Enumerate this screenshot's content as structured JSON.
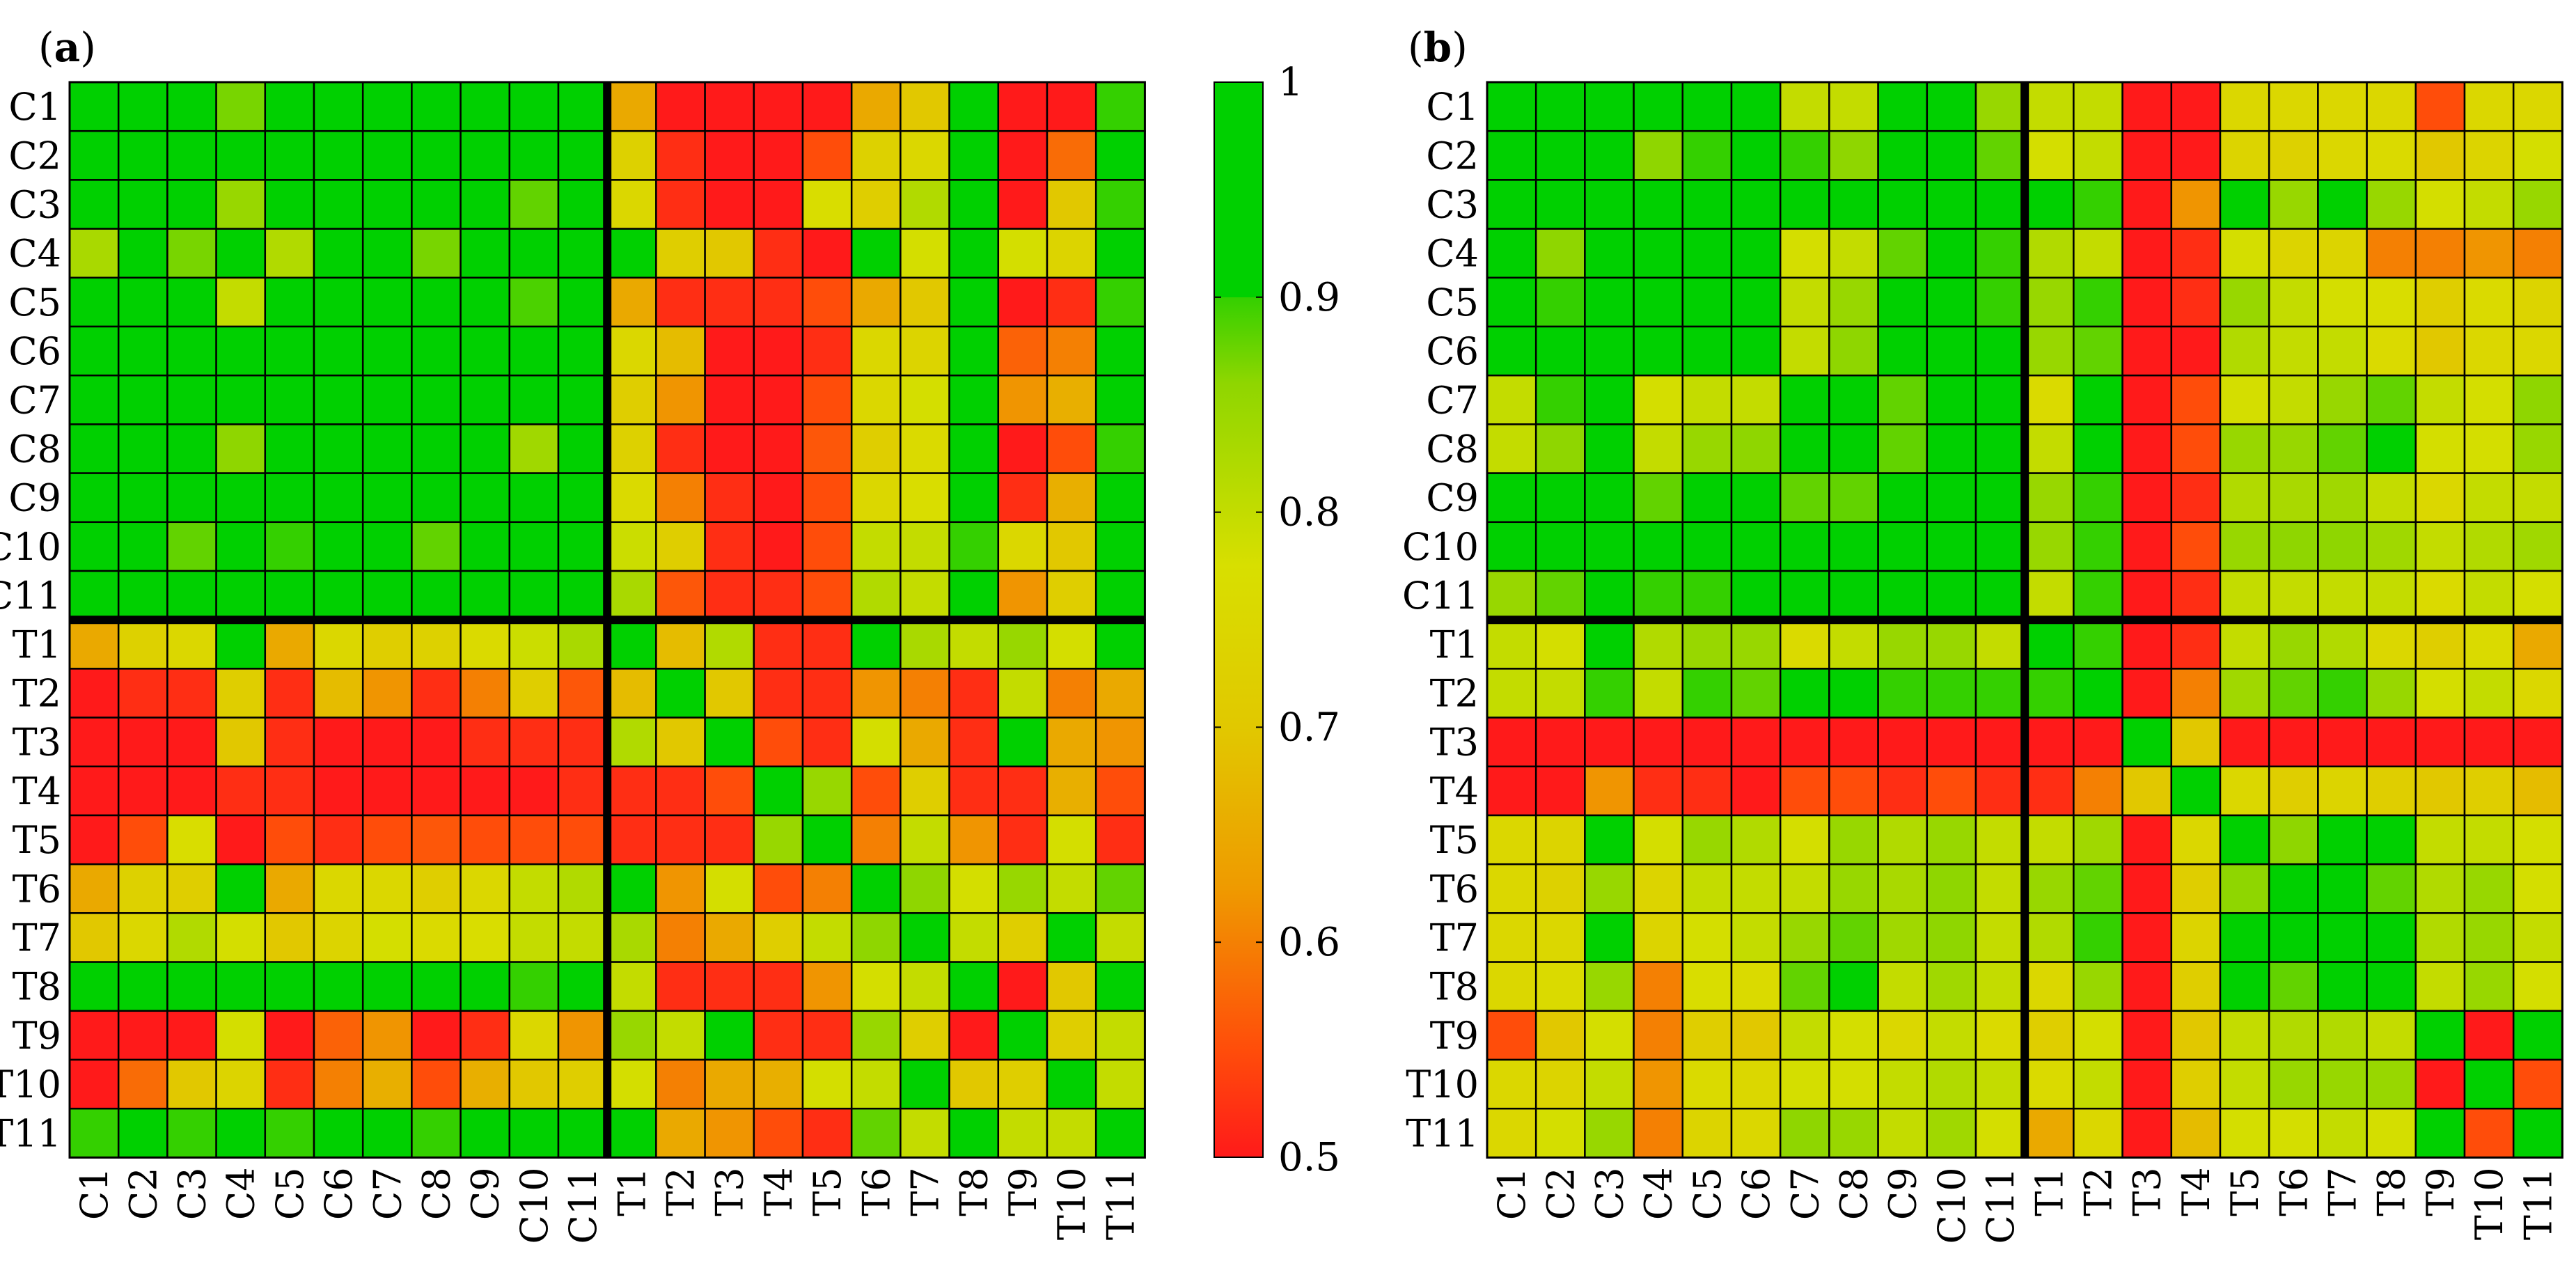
{
  "panels": [
    {
      "label_open": "(",
      "label_letter": "a",
      "label_close": ")"
    },
    {
      "label_open": "(",
      "label_letter": "b",
      "label_close": ")"
    }
  ],
  "colorbar": {
    "ticks": [
      "1",
      "0.9",
      "0.8",
      "0.7",
      "0.6",
      "0.5"
    ]
  },
  "colors": {
    "low": "#ff1a1a",
    "mid": "#dede00",
    "high": "#00d000",
    "grid": "#000000",
    "divider": "#000000"
  },
  "chart_data": [
    {
      "type": "heatmap",
      "title": "",
      "panel": "a",
      "labels": [
        "C1",
        "C2",
        "C3",
        "C4",
        "C5",
        "C6",
        "C7",
        "C8",
        "C9",
        "C10",
        "C11",
        "T1",
        "T2",
        "T3",
        "T4",
        "T5",
        "T6",
        "T7",
        "T8",
        "T9",
        "T10",
        "T11"
      ],
      "vmin": 0.5,
      "vmax": 1,
      "values": [
        [
          0.95,
          0.95,
          0.95,
          0.87,
          0.95,
          0.95,
          0.95,
          0.95,
          0.95,
          0.95,
          0.95,
          0.65,
          0.5,
          0.5,
          0.5,
          0.5,
          0.65,
          0.7,
          0.95,
          0.5,
          0.5,
          0.9
        ],
        [
          0.95,
          0.95,
          0.95,
          0.95,
          0.95,
          0.95,
          0.95,
          0.95,
          0.95,
          0.95,
          0.95,
          0.73,
          0.52,
          0.5,
          0.5,
          0.55,
          0.73,
          0.75,
          0.95,
          0.5,
          0.58,
          0.95
        ],
        [
          0.95,
          0.95,
          0.95,
          0.85,
          0.95,
          0.93,
          0.95,
          0.95,
          0.95,
          0.88,
          0.95,
          0.75,
          0.52,
          0.5,
          0.5,
          0.77,
          0.72,
          0.82,
          0.95,
          0.5,
          0.7,
          0.9
        ],
        [
          0.83,
          0.95,
          0.87,
          0.95,
          0.82,
          0.95,
          0.95,
          0.87,
          0.95,
          0.95,
          0.95,
          0.95,
          0.72,
          0.7,
          0.52,
          0.5,
          0.95,
          0.78,
          0.92,
          0.78,
          0.74,
          0.95
        ],
        [
          0.95,
          0.95,
          0.95,
          0.8,
          0.95,
          0.95,
          0.95,
          0.95,
          0.95,
          0.89,
          0.95,
          0.65,
          0.52,
          0.52,
          0.52,
          0.55,
          0.65,
          0.7,
          0.95,
          0.5,
          0.52,
          0.9
        ],
        [
          0.95,
          0.95,
          0.92,
          0.95,
          0.95,
          0.95,
          0.93,
          0.95,
          0.95,
          0.95,
          0.95,
          0.75,
          0.68,
          0.5,
          0.5,
          0.52,
          0.75,
          0.74,
          0.95,
          0.57,
          0.6,
          0.95
        ],
        [
          0.95,
          0.95,
          0.95,
          0.95,
          0.95,
          0.95,
          0.95,
          0.95,
          0.95,
          0.95,
          0.95,
          0.72,
          0.62,
          0.5,
          0.5,
          0.55,
          0.75,
          0.78,
          0.95,
          0.62,
          0.66,
          0.95
        ],
        [
          0.95,
          0.95,
          0.95,
          0.86,
          0.95,
          0.92,
          0.95,
          0.95,
          0.95,
          0.84,
          0.95,
          0.73,
          0.52,
          0.5,
          0.5,
          0.56,
          0.72,
          0.76,
          0.95,
          0.5,
          0.55,
          0.9
        ],
        [
          0.95,
          0.95,
          0.95,
          0.95,
          0.95,
          0.95,
          0.95,
          0.95,
          0.95,
          0.95,
          0.95,
          0.76,
          0.6,
          0.52,
          0.5,
          0.55,
          0.75,
          0.77,
          0.95,
          0.52,
          0.66,
          0.95
        ],
        [
          0.92,
          0.95,
          0.88,
          0.95,
          0.9,
          0.95,
          0.95,
          0.88,
          0.95,
          0.95,
          0.95,
          0.79,
          0.72,
          0.52,
          0.5,
          0.55,
          0.8,
          0.8,
          0.9,
          0.75,
          0.7,
          0.93
        ],
        [
          0.95,
          0.95,
          0.95,
          0.95,
          0.95,
          0.95,
          0.95,
          0.95,
          0.95,
          0.95,
          0.95,
          0.83,
          0.56,
          0.52,
          0.52,
          0.55,
          0.82,
          0.8,
          0.95,
          0.62,
          0.72,
          0.95
        ],
        [
          0.65,
          0.73,
          0.75,
          0.95,
          0.65,
          0.75,
          0.72,
          0.73,
          0.76,
          0.79,
          0.83,
          0.95,
          0.68,
          0.82,
          0.52,
          0.52,
          0.95,
          0.83,
          0.8,
          0.85,
          0.78,
          0.92
        ],
        [
          0.5,
          0.52,
          0.52,
          0.72,
          0.52,
          0.68,
          0.62,
          0.52,
          0.6,
          0.72,
          0.56,
          0.68,
          0.95,
          0.7,
          0.52,
          0.52,
          0.62,
          0.6,
          0.52,
          0.8,
          0.6,
          0.65
        ],
        [
          0.5,
          0.5,
          0.5,
          0.7,
          0.52,
          0.5,
          0.5,
          0.5,
          0.52,
          0.52,
          0.52,
          0.82,
          0.7,
          0.95,
          0.55,
          0.52,
          0.78,
          0.65,
          0.52,
          0.95,
          0.65,
          0.62
        ],
        [
          0.5,
          0.5,
          0.5,
          0.52,
          0.52,
          0.5,
          0.5,
          0.5,
          0.5,
          0.5,
          0.52,
          0.52,
          0.52,
          0.55,
          0.95,
          0.85,
          0.55,
          0.72,
          0.52,
          0.52,
          0.66,
          0.55
        ],
        [
          0.5,
          0.55,
          0.77,
          0.5,
          0.55,
          0.52,
          0.55,
          0.56,
          0.55,
          0.55,
          0.55,
          0.52,
          0.52,
          0.52,
          0.85,
          0.95,
          0.6,
          0.8,
          0.62,
          0.52,
          0.78,
          0.52
        ],
        [
          0.65,
          0.73,
          0.72,
          0.95,
          0.65,
          0.75,
          0.75,
          0.72,
          0.75,
          0.8,
          0.82,
          0.95,
          0.62,
          0.78,
          0.55,
          0.6,
          0.95,
          0.86,
          0.78,
          0.85,
          0.8,
          0.88
        ],
        [
          0.7,
          0.75,
          0.82,
          0.78,
          0.7,
          0.74,
          0.78,
          0.76,
          0.77,
          0.8,
          0.8,
          0.83,
          0.6,
          0.65,
          0.72,
          0.8,
          0.86,
          0.95,
          0.8,
          0.72,
          0.95,
          0.8
        ],
        [
          0.95,
          0.95,
          0.95,
          0.92,
          0.95,
          0.95,
          0.95,
          0.95,
          0.95,
          0.9,
          0.95,
          0.8,
          0.52,
          0.52,
          0.52,
          0.62,
          0.78,
          0.8,
          0.95,
          0.5,
          0.7,
          0.95
        ],
        [
          0.5,
          0.5,
          0.5,
          0.78,
          0.5,
          0.57,
          0.62,
          0.5,
          0.52,
          0.75,
          0.62,
          0.85,
          0.8,
          0.95,
          0.52,
          0.52,
          0.85,
          0.72,
          0.5,
          0.95,
          0.72,
          0.8
        ],
        [
          0.5,
          0.58,
          0.7,
          0.74,
          0.52,
          0.6,
          0.66,
          0.55,
          0.66,
          0.7,
          0.72,
          0.78,
          0.6,
          0.65,
          0.66,
          0.78,
          0.8,
          0.95,
          0.7,
          0.72,
          0.95,
          0.8
        ],
        [
          0.9,
          0.95,
          0.9,
          0.95,
          0.9,
          0.95,
          0.95,
          0.9,
          0.95,
          0.93,
          0.95,
          0.92,
          0.65,
          0.62,
          0.55,
          0.52,
          0.88,
          0.8,
          0.95,
          0.8,
          0.8,
          0.95
        ]
      ]
    },
    {
      "type": "heatmap",
      "title": "",
      "panel": "b",
      "labels": [
        "C1",
        "C2",
        "C3",
        "C4",
        "C5",
        "C6",
        "C7",
        "C8",
        "C9",
        "C10",
        "C11",
        "T1",
        "T2",
        "T3",
        "T4",
        "T5",
        "T6",
        "T7",
        "T8",
        "T9",
        "T10",
        "T11"
      ],
      "vmin": 0.5,
      "vmax": 1,
      "values": [
        [
          0.95,
          0.95,
          0.95,
          0.94,
          0.95,
          0.95,
          0.8,
          0.8,
          0.95,
          0.95,
          0.85,
          0.8,
          0.8,
          0.5,
          0.5,
          0.75,
          0.75,
          0.75,
          0.75,
          0.55,
          0.75,
          0.75
        ],
        [
          0.95,
          0.95,
          0.95,
          0.86,
          0.9,
          0.95,
          0.9,
          0.86,
          0.95,
          0.95,
          0.88,
          0.78,
          0.8,
          0.5,
          0.5,
          0.74,
          0.73,
          0.75,
          0.76,
          0.7,
          0.74,
          0.78
        ],
        [
          0.95,
          0.95,
          0.95,
          0.95,
          0.95,
          0.95,
          0.93,
          0.92,
          0.95,
          0.93,
          0.92,
          0.95,
          0.9,
          0.5,
          0.62,
          0.95,
          0.85,
          0.93,
          0.85,
          0.78,
          0.8,
          0.85
        ],
        [
          0.92,
          0.86,
          0.95,
          0.95,
          0.94,
          0.95,
          0.78,
          0.8,
          0.88,
          0.92,
          0.9,
          0.82,
          0.8,
          0.5,
          0.52,
          0.78,
          0.74,
          0.74,
          0.6,
          0.6,
          0.62,
          0.6
        ],
        [
          0.95,
          0.9,
          0.95,
          0.94,
          0.95,
          0.95,
          0.8,
          0.85,
          0.95,
          0.95,
          0.9,
          0.85,
          0.9,
          0.5,
          0.52,
          0.85,
          0.8,
          0.78,
          0.77,
          0.72,
          0.76,
          0.74
        ],
        [
          0.95,
          0.95,
          0.95,
          0.95,
          0.95,
          0.95,
          0.8,
          0.86,
          0.95,
          0.95,
          0.93,
          0.85,
          0.88,
          0.5,
          0.5,
          0.82,
          0.8,
          0.8,
          0.76,
          0.7,
          0.75,
          0.75
        ],
        [
          0.8,
          0.9,
          0.93,
          0.78,
          0.8,
          0.8,
          0.95,
          0.95,
          0.88,
          0.95,
          0.93,
          0.76,
          0.95,
          0.5,
          0.55,
          0.78,
          0.8,
          0.85,
          0.88,
          0.8,
          0.78,
          0.86
        ],
        [
          0.8,
          0.86,
          0.92,
          0.8,
          0.85,
          0.86,
          0.95,
          0.95,
          0.88,
          0.95,
          0.92,
          0.8,
          0.95,
          0.5,
          0.55,
          0.85,
          0.85,
          0.88,
          0.92,
          0.78,
          0.78,
          0.85
        ],
        [
          0.95,
          0.95,
          0.95,
          0.88,
          0.95,
          0.95,
          0.88,
          0.88,
          0.95,
          0.95,
          0.92,
          0.85,
          0.9,
          0.5,
          0.52,
          0.82,
          0.83,
          0.84,
          0.8,
          0.75,
          0.8,
          0.8
        ],
        [
          0.95,
          0.95,
          0.93,
          0.92,
          0.95,
          0.95,
          0.95,
          0.95,
          0.95,
          0.95,
          0.95,
          0.85,
          0.9,
          0.5,
          0.55,
          0.85,
          0.86,
          0.86,
          0.84,
          0.8,
          0.82,
          0.84
        ],
        [
          0.85,
          0.88,
          0.92,
          0.9,
          0.9,
          0.93,
          0.93,
          0.92,
          0.92,
          0.95,
          0.95,
          0.8,
          0.9,
          0.5,
          0.52,
          0.8,
          0.8,
          0.8,
          0.8,
          0.76,
          0.8,
          0.78
        ],
        [
          0.8,
          0.78,
          0.95,
          0.82,
          0.85,
          0.85,
          0.76,
          0.8,
          0.85,
          0.85,
          0.8,
          0.95,
          0.9,
          0.5,
          0.52,
          0.8,
          0.85,
          0.82,
          0.75,
          0.72,
          0.76,
          0.65
        ],
        [
          0.8,
          0.8,
          0.9,
          0.8,
          0.9,
          0.88,
          0.95,
          0.95,
          0.9,
          0.9,
          0.9,
          0.9,
          0.95,
          0.5,
          0.6,
          0.84,
          0.88,
          0.9,
          0.85,
          0.78,
          0.8,
          0.75
        ],
        [
          0.5,
          0.5,
          0.5,
          0.5,
          0.5,
          0.5,
          0.5,
          0.5,
          0.5,
          0.5,
          0.5,
          0.5,
          0.5,
          0.95,
          0.7,
          0.5,
          0.5,
          0.5,
          0.5,
          0.5,
          0.5,
          0.5
        ],
        [
          0.5,
          0.5,
          0.62,
          0.52,
          0.52,
          0.5,
          0.55,
          0.55,
          0.52,
          0.55,
          0.52,
          0.52,
          0.6,
          0.7,
          0.95,
          0.75,
          0.72,
          0.74,
          0.72,
          0.7,
          0.72,
          0.68
        ],
        [
          0.75,
          0.74,
          0.95,
          0.78,
          0.85,
          0.82,
          0.78,
          0.85,
          0.82,
          0.85,
          0.8,
          0.8,
          0.84,
          0.5,
          0.75,
          0.95,
          0.86,
          0.95,
          0.92,
          0.8,
          0.8,
          0.78
        ],
        [
          0.75,
          0.73,
          0.85,
          0.74,
          0.8,
          0.8,
          0.8,
          0.85,
          0.83,
          0.86,
          0.8,
          0.85,
          0.88,
          0.5,
          0.72,
          0.86,
          0.95,
          0.95,
          0.88,
          0.82,
          0.85,
          0.78
        ],
        [
          0.75,
          0.75,
          0.93,
          0.74,
          0.78,
          0.8,
          0.85,
          0.88,
          0.84,
          0.86,
          0.8,
          0.82,
          0.9,
          0.5,
          0.74,
          0.95,
          0.95,
          0.95,
          0.92,
          0.82,
          0.85,
          0.8
        ],
        [
          0.75,
          0.76,
          0.85,
          0.6,
          0.77,
          0.76,
          0.88,
          0.92,
          0.8,
          0.84,
          0.8,
          0.75,
          0.85,
          0.5,
          0.72,
          0.92,
          0.88,
          0.92,
          0.95,
          0.8,
          0.85,
          0.78
        ],
        [
          0.55,
          0.7,
          0.78,
          0.6,
          0.72,
          0.7,
          0.8,
          0.78,
          0.75,
          0.8,
          0.76,
          0.72,
          0.78,
          0.5,
          0.7,
          0.8,
          0.82,
          0.82,
          0.8,
          0.95,
          0.5,
          0.95
        ],
        [
          0.75,
          0.74,
          0.8,
          0.62,
          0.76,
          0.75,
          0.78,
          0.78,
          0.8,
          0.82,
          0.8,
          0.76,
          0.8,
          0.5,
          0.72,
          0.8,
          0.85,
          0.85,
          0.85,
          0.5,
          0.95,
          0.55
        ],
        [
          0.75,
          0.78,
          0.85,
          0.6,
          0.74,
          0.75,
          0.86,
          0.85,
          0.8,
          0.84,
          0.78,
          0.65,
          0.75,
          0.5,
          0.68,
          0.78,
          0.78,
          0.8,
          0.78,
          0.95,
          0.55,
          0.95
        ]
      ]
    }
  ]
}
